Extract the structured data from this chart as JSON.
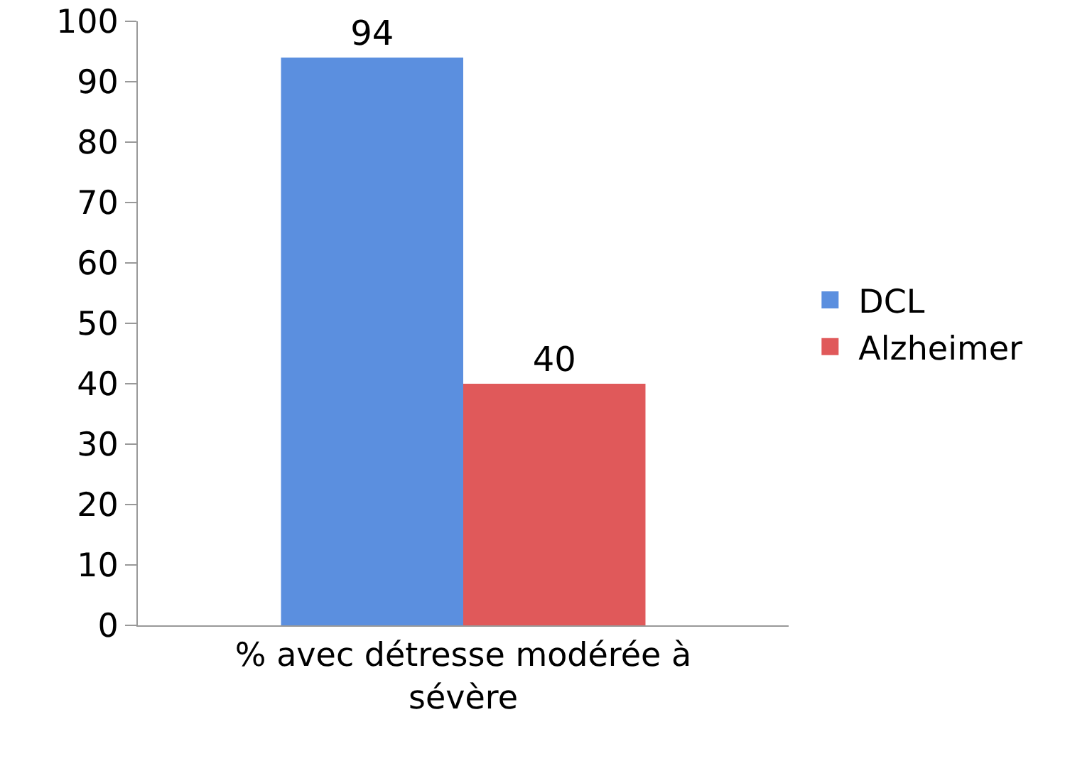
{
  "chart_data": {
    "type": "bar",
    "categories": [
      "% avec détresse modérée à sévère"
    ],
    "series": [
      {
        "name": "DCL",
        "color": "#5b8fdf",
        "values": [
          94
        ]
      },
      {
        "name": "Alzheimer",
        "color": "#e0595a",
        "values": [
          40
        ]
      }
    ],
    "ylim": [
      0,
      100
    ],
    "yticks": [
      0,
      10,
      20,
      30,
      40,
      50,
      60,
      70,
      80,
      90,
      100
    ],
    "grid": false,
    "legend": "right",
    "data_labels": true
  }
}
